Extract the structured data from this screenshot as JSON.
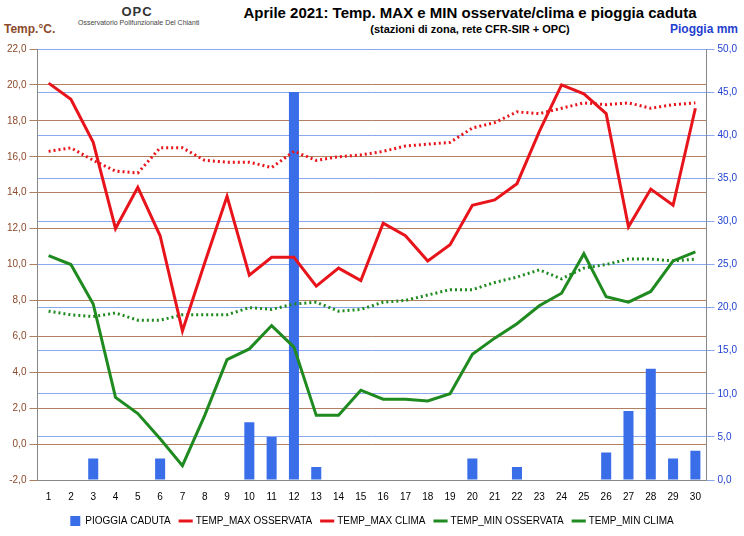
{
  "chart_data": {
    "type": "bar",
    "title": "Aprile 2021: Temp. MAX e MIN osservate/clima e pioggia caduta",
    "subtitle": "(stazioni di zona, rete CFR-SIR + OPC)",
    "y_label": "Temp.°C.",
    "y2_label": "Pioggia mm",
    "annotations": [
      "OPC",
      "Osservatorio Polifunzionale Del Chianti"
    ],
    "categories": [
      "1",
      "2",
      "3",
      "4",
      "5",
      "6",
      "7",
      "8",
      "9",
      "10",
      "11",
      "12",
      "13",
      "14",
      "15",
      "16",
      "17",
      "18",
      "19",
      "20",
      "21",
      "22",
      "23",
      "24",
      "25",
      "26",
      "27",
      "28",
      "29",
      "30"
    ],
    "series": [
      {
        "name": "PIOGGIA CADUTA",
        "type": "bar",
        "axis": "y2",
        "color": "#3a6ee8",
        "values": [
          null,
          null,
          2.5,
          null,
          null,
          2.5,
          null,
          null,
          null,
          6.7,
          5.0,
          45.0,
          1.5,
          null,
          null,
          null,
          null,
          null,
          null,
          2.5,
          null,
          1.5,
          null,
          null,
          null,
          3.2,
          8.0,
          12.9,
          2.5,
          3.4
        ]
      },
      {
        "name": "TEMP_MAX OSSERVATA",
        "type": "line",
        "color": "#e8141b",
        "line_style": "solid",
        "values": [
          20.1,
          19.2,
          16.8,
          12.0,
          14.3,
          11.6,
          6.3,
          10.1,
          13.8,
          9.4,
          10.4,
          10.4,
          8.8,
          9.8,
          9.1,
          12.3,
          11.6,
          10.2,
          11.1,
          13.3,
          13.6,
          14.5,
          17.4,
          20.0,
          19.5,
          18.4,
          12.1,
          14.2,
          13.3,
          18.7
        ]
      },
      {
        "name": "TEMP_MAX CLIMA",
        "type": "line",
        "color": "#e8141b",
        "line_style": "dotted",
        "values": [
          16.3,
          16.5,
          15.8,
          15.2,
          15.1,
          16.5,
          16.5,
          15.8,
          15.7,
          15.7,
          15.4,
          16.3,
          15.8,
          16.0,
          16.1,
          16.3,
          16.6,
          16.7,
          16.8,
          17.6,
          17.9,
          18.5,
          18.4,
          18.7,
          19.0,
          18.9,
          19.0,
          18.7,
          18.9,
          19.0
        ]
      },
      {
        "name": "TEMP_MIN OSSERVATA",
        "type": "line",
        "color": "#1f8a1f",
        "line_style": "solid",
        "values": [
          10.5,
          10.0,
          7.8,
          2.6,
          1.7,
          0.3,
          -1.2,
          1.6,
          4.7,
          5.3,
          6.6,
          5.4,
          1.6,
          1.6,
          3.0,
          2.5,
          2.5,
          2.4,
          2.8,
          5.0,
          5.9,
          6.7,
          7.7,
          8.4,
          10.6,
          8.2,
          7.9,
          8.5,
          10.2,
          10.7
        ]
      },
      {
        "name": "TEMP_MIN CLIMA",
        "type": "line",
        "color": "#1f8a1f",
        "line_style": "dotted",
        "values": [
          7.4,
          7.2,
          7.1,
          7.3,
          6.9,
          6.9,
          7.2,
          7.2,
          7.2,
          7.6,
          7.5,
          7.8,
          7.9,
          7.4,
          7.5,
          7.9,
          8.0,
          8.3,
          8.6,
          8.6,
          9.0,
          9.3,
          9.7,
          9.2,
          9.8,
          10.0,
          10.3,
          10.3,
          10.2,
          10.3
        ]
      }
    ],
    "ylim": [
      -2,
      22
    ],
    "yticks": [
      {
        "value": -2,
        "label": "-2,0"
      },
      {
        "value": 0,
        "label": "0,0"
      },
      {
        "value": 2,
        "label": "2,0"
      },
      {
        "value": 4,
        "label": "4,0"
      },
      {
        "value": 6,
        "label": "6,0"
      },
      {
        "value": 8,
        "label": "8,0"
      },
      {
        "value": 10,
        "label": "10,0"
      },
      {
        "value": 12,
        "label": "12,0"
      },
      {
        "value": 14,
        "label": "14,0"
      },
      {
        "value": 16,
        "label": "16,0"
      },
      {
        "value": 18,
        "label": "18,0"
      },
      {
        "value": 20,
        "label": "20,0"
      },
      {
        "value": 22,
        "label": "22,0"
      }
    ],
    "y2lim": [
      0,
      50
    ],
    "y2ticks": [
      {
        "value": 0,
        "label": "0,0"
      },
      {
        "value": 5,
        "label": "5,0"
      },
      {
        "value": 10,
        "label": "10,0"
      },
      {
        "value": 15,
        "label": "15,0"
      },
      {
        "value": 20,
        "label": "20,0"
      },
      {
        "value": 25,
        "label": "25,0"
      },
      {
        "value": 30,
        "label": "30,0"
      },
      {
        "value": 35,
        "label": "35,0"
      },
      {
        "value": 40,
        "label": "40,0"
      },
      {
        "value": 45,
        "label": "45,0"
      },
      {
        "value": 50,
        "label": "50,0"
      }
    ],
    "grid": true,
    "legend": "bottom"
  }
}
